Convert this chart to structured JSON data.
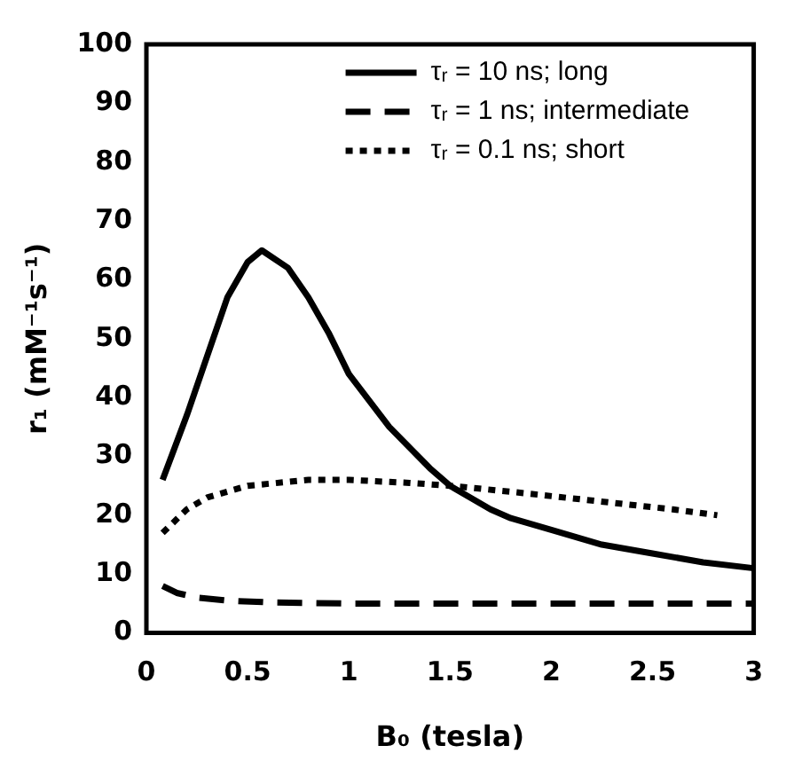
{
  "chart_data": {
    "type": "line",
    "xlabel": "B₀ (tesla)",
    "ylabel": "r₁ (mM⁻¹s⁻¹)",
    "xlim": [
      0,
      3
    ],
    "xticks": [
      0,
      0.5,
      1,
      1.5,
      2,
      2.5,
      3
    ],
    "ylim": [
      0,
      100
    ],
    "yticks": [
      0,
      10,
      20,
      30,
      40,
      50,
      60,
      70,
      80,
      90,
      100
    ],
    "grid": false,
    "legend": "top right",
    "marker": "none",
    "series": [
      {
        "name": "τᵣ = 10 ns; long",
        "color": "#000000",
        "line_style": "solid",
        "x": [
          0.08,
          0.2,
          0.3,
          0.4,
          0.5,
          0.57,
          0.7,
          0.8,
          0.9,
          1.0,
          1.2,
          1.4,
          1.5,
          1.7,
          1.8,
          2.0,
          2.25,
          2.5,
          2.75,
          3.0
        ],
        "values": [
          26,
          37,
          47,
          57,
          63,
          65,
          62,
          57,
          51,
          44,
          35,
          28,
          25,
          21,
          19.5,
          17.5,
          15,
          13.5,
          12,
          11
        ]
      },
      {
        "name": "τᵣ = 1 ns; intermediate",
        "color": "#000000",
        "line_style": "dashed",
        "x": [
          0.08,
          0.15,
          0.25,
          0.4,
          0.6,
          1.0,
          1.5,
          2.0,
          2.5,
          3.0
        ],
        "values": [
          8,
          6.8,
          6,
          5.5,
          5.2,
          5,
          5,
          5,
          5,
          5
        ]
      },
      {
        "name": "τᵣ = 0.1 ns; short",
        "color": "#000000",
        "line_style": "dotted",
        "x": [
          0.08,
          0.2,
          0.3,
          0.5,
          0.8,
          1.0,
          1.3,
          1.5,
          1.8,
          2.2,
          2.6,
          2.82
        ],
        "values": [
          17,
          21,
          23,
          25,
          26,
          26,
          25.5,
          25,
          24,
          22.5,
          21,
          20
        ]
      }
    ]
  }
}
